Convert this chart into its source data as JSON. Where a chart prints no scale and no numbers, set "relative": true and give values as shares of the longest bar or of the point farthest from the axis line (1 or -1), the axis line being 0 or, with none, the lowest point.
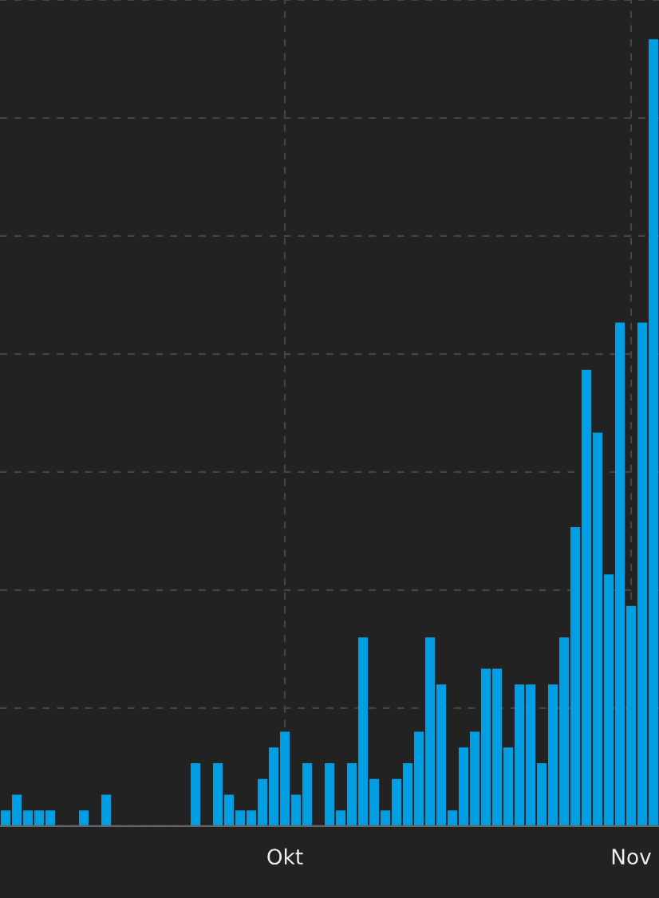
{
  "chart_data": {
    "type": "bar",
    "relative": true,
    "color": "#009fe3",
    "grid": true,
    "categories": [
      null,
      null,
      null,
      null,
      null,
      null,
      null,
      null,
      null,
      null,
      null,
      null,
      null,
      null,
      null,
      null,
      null,
      null,
      null,
      null,
      null,
      null,
      null,
      null,
      null,
      "Okt",
      null,
      null,
      null,
      null,
      null,
      null,
      null,
      null,
      null,
      null,
      null,
      null,
      null,
      null,
      null,
      null,
      null,
      null,
      null,
      null,
      null,
      null,
      null,
      null,
      null,
      null,
      null,
      null,
      null,
      null,
      "Nov",
      null,
      null
    ],
    "values": [
      0.02,
      0.04,
      0.02,
      0.02,
      0.02,
      0,
      0,
      0.02,
      0,
      0.04,
      0,
      0,
      0,
      0,
      0,
      0,
      0,
      0.08,
      0,
      0.08,
      0.04,
      0.02,
      0.02,
      0.06,
      0.1,
      0.12,
      0.04,
      0.08,
      0,
      0.08,
      0.02,
      0.08,
      0.24,
      0.06,
      0.02,
      0.06,
      0.08,
      0.12,
      0.24,
      0.18,
      0.02,
      0.1,
      0.12,
      0.2,
      0.2,
      0.1,
      0.18,
      0.18,
      0.08,
      0.18,
      0.24,
      0.38,
      0.58,
      0.5,
      0.32,
      0.64,
      0.28,
      0.64,
      1
    ]
  }
}
